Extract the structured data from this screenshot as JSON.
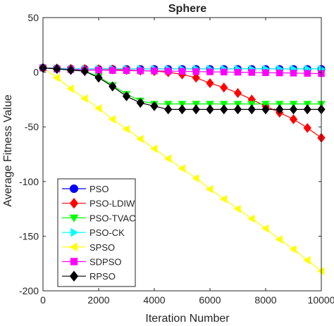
{
  "chart_data": {
    "type": "line",
    "title": "Sphere",
    "xlabel": "Iteration Number",
    "ylabel": "Average Fitness Value",
    "xlim": [
      0,
      10000
    ],
    "ylim": [
      -200,
      50
    ],
    "xticks": [
      0,
      2000,
      4000,
      6000,
      8000,
      10000
    ],
    "yticks": [
      50,
      0,
      -50,
      -100,
      -150,
      -200
    ],
    "legend_position": "bottom-left",
    "grid": false,
    "series": [
      {
        "name": "PSO",
        "color": "#0000ff",
        "marker": "circle",
        "x": [
          0,
          500,
          1000,
          1500,
          2000,
          2500,
          3000,
          3500,
          4000,
          4500,
          5000,
          5500,
          6000,
          6500,
          7000,
          7500,
          8000,
          8500,
          9000,
          9500,
          10000
        ],
        "y": [
          4,
          3.5,
          3.2,
          3.1,
          3,
          3,
          3,
          3,
          3,
          3,
          3,
          3,
          3,
          3,
          3,
          3,
          3,
          3,
          3,
          3,
          3
        ]
      },
      {
        "name": "PSO-LDIW",
        "color": "#ff0000",
        "marker": "diamond",
        "x": [
          0,
          500,
          1000,
          1500,
          2000,
          2500,
          3000,
          3500,
          4000,
          4500,
          5000,
          5500,
          6000,
          6500,
          7000,
          7500,
          8000,
          8500,
          9000,
          9500,
          10000
        ],
        "y": [
          4,
          3.5,
          3.2,
          3,
          2.8,
          2.5,
          2,
          1.5,
          1,
          0,
          -2,
          -5,
          -10,
          -14,
          -19,
          -25,
          -31,
          -37,
          -43,
          -51,
          -60
        ]
      },
      {
        "name": "PSO-TVAC",
        "color": "#00ff00",
        "marker": "triangle-down",
        "x": [
          0,
          500,
          1000,
          1500,
          2000,
          2500,
          3000,
          3500,
          4000,
          4500,
          5000,
          5500,
          6000,
          6500,
          7000,
          7500,
          8000,
          8500,
          9000,
          9500,
          10000
        ],
        "y": [
          4,
          3,
          2,
          1,
          -4,
          -12,
          -20,
          -26,
          -29,
          -29,
          -29,
          -29,
          -29,
          -29,
          -29,
          -29,
          -29,
          -29,
          -29,
          -29,
          -29
        ]
      },
      {
        "name": "PSO-CK",
        "color": "#00ffff",
        "marker": "triangle-right",
        "x": [
          0,
          500,
          1000,
          1500,
          2000,
          2500,
          3000,
          3500,
          4000,
          4500,
          5000,
          5500,
          6000,
          6500,
          7000,
          7500,
          8000,
          8500,
          9000,
          9500,
          10000
        ],
        "y": [
          4,
          3.5,
          3.2,
          3.1,
          3,
          3,
          3,
          3,
          3,
          3,
          3,
          3,
          3,
          3,
          3,
          3,
          3,
          3,
          3,
          3,
          3
        ]
      },
      {
        "name": "SPSO",
        "color": "#ffff00",
        "marker": "triangle-left",
        "x": [
          0,
          500,
          1000,
          1500,
          2000,
          2500,
          3000,
          3500,
          4000,
          4500,
          5000,
          5500,
          6000,
          6500,
          7000,
          7500,
          8000,
          8500,
          9000,
          9500,
          10000
        ],
        "y": [
          4,
          -5,
          -15,
          -24,
          -33,
          -43,
          -52,
          -61,
          -70,
          -79,
          -88,
          -97,
          -107,
          -116,
          -125,
          -134,
          -143,
          -153,
          -162,
          -172,
          -182
        ]
      },
      {
        "name": "SDPSO",
        "color": "#ff00ff",
        "marker": "square",
        "x": [
          0,
          500,
          1000,
          1500,
          2000,
          2500,
          3000,
          3500,
          4000,
          4500,
          5000,
          5500,
          6000,
          6500,
          7000,
          7500,
          8000,
          8500,
          9000,
          9500,
          10000
        ],
        "y": [
          4,
          3,
          2.5,
          2,
          1.8,
          1.6,
          1.5,
          1.3,
          1.2,
          1,
          0.8,
          0.6,
          0.4,
          0.2,
          0,
          -0.2,
          -0.4,
          -0.6,
          -0.8,
          -1,
          -1.2
        ]
      },
      {
        "name": "RPSO",
        "color": "#000000",
        "marker": "diamond",
        "x": [
          0,
          500,
          1000,
          1500,
          2000,
          2500,
          3000,
          3500,
          4000,
          4500,
          5000,
          5500,
          6000,
          6500,
          7000,
          7500,
          8000,
          8500,
          9000,
          9500,
          10000
        ],
        "y": [
          4,
          3,
          2,
          1,
          -5,
          -13,
          -22,
          -28,
          -31,
          -34,
          -34,
          -34,
          -34,
          -34,
          -34,
          -34,
          -34,
          -34,
          -34,
          -34,
          -34
        ]
      }
    ]
  }
}
